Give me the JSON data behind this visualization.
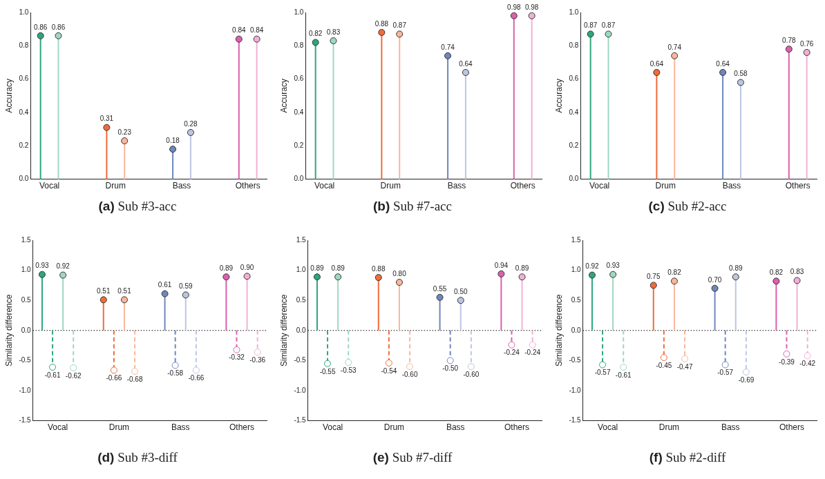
{
  "chart_data": [
    {
      "type": "lollipop",
      "title": "(a) Sub #3-acc",
      "ylabel": "Accuracy",
      "categories": [
        "Vocal",
        "Drum",
        "Bass",
        "Others"
      ],
      "ylim": [
        0,
        1
      ],
      "yticks": [
        {
          "value": 0,
          "label": "0.0"
        },
        0.2,
        0.4,
        0.6,
        0.8,
        {
          "value": 1,
          "label": "1.0"
        }
      ],
      "marker": "circle",
      "grid": false,
      "legend": false,
      "series": [
        {
          "colors": [
            "#2ca77a",
            "#f26b3a",
            "#6f86bd",
            "#de5fae"
          ],
          "values": [
            0.86,
            0.31,
            0.18,
            0.84
          ],
          "value_labels": [
            "0.86",
            "0.31",
            "0.18",
            "0.84"
          ],
          "line_style": "solid"
        },
        {
          "colors": [
            "#9fd8c0",
            "#fbb69a",
            "#bcc6e2",
            "#f2b0d6"
          ],
          "values": [
            0.86,
            0.23,
            0.28,
            0.84
          ],
          "value_labels": [
            "0.86",
            "0.23",
            "0.28",
            "0.84"
          ],
          "line_style": "solid"
        }
      ]
    },
    {
      "type": "lollipop",
      "title": "(b) Sub #7-acc",
      "ylabel": "Accuracy",
      "categories": [
        "Vocal",
        "Drum",
        "Bass",
        "Others"
      ],
      "ylim": [
        0,
        1
      ],
      "yticks": [
        {
          "value": 0,
          "label": "0.0"
        },
        0.2,
        0.4,
        0.6,
        0.8,
        {
          "value": 1,
          "label": "1.0"
        }
      ],
      "marker": "circle",
      "grid": false,
      "legend": false,
      "series": [
        {
          "colors": [
            "#2ca77a",
            "#f26b3a",
            "#6f86bd",
            "#de5fae"
          ],
          "values": [
            0.82,
            0.88,
            0.74,
            0.98
          ],
          "value_labels": [
            "0.82",
            "0.88",
            "0.74",
            "0.98"
          ],
          "line_style": "solid"
        },
        {
          "colors": [
            "#9fd8c0",
            "#fbb69a",
            "#bcc6e2",
            "#f2b0d6"
          ],
          "values": [
            0.83,
            0.87,
            0.64,
            0.98
          ],
          "value_labels": [
            "0.83",
            "0.87",
            "0.64",
            "0.98"
          ],
          "line_style": "solid"
        }
      ]
    },
    {
      "type": "lollipop",
      "title": "(c) Sub #2-acc",
      "ylabel": "Accuracy",
      "categories": [
        "Vocal",
        "Drum",
        "Bass",
        "Others"
      ],
      "ylim": [
        0,
        1
      ],
      "yticks": [
        {
          "value": 0,
          "label": "0.0"
        },
        0.2,
        0.4,
        0.6,
        0.8,
        {
          "value": 1,
          "label": "1.0"
        }
      ],
      "marker": "circle",
      "grid": false,
      "legend": false,
      "series": [
        {
          "colors": [
            "#2ca77a",
            "#f26b3a",
            "#6f86bd",
            "#de5fae"
          ],
          "values": [
            0.87,
            0.64,
            0.64,
            0.78
          ],
          "value_labels": [
            "0.87",
            "0.64",
            "0.64",
            "0.78"
          ],
          "line_style": "solid"
        },
        {
          "colors": [
            "#9fd8c0",
            "#fbb69a",
            "#bcc6e2",
            "#f2b0d6"
          ],
          "values": [
            0.87,
            0.74,
            0.58,
            0.76
          ],
          "value_labels": [
            "0.87",
            "0.74",
            "0.58",
            "0.76"
          ],
          "line_style": "solid"
        }
      ]
    },
    {
      "type": "lollipop",
      "title": "(d) Sub #3-diff",
      "ylabel": "Similarity difference",
      "categories": [
        "Vocal",
        "Drum",
        "Bass",
        "Others"
      ],
      "ylim": [
        -1.5,
        1.5
      ],
      "yticks": [
        -1.5,
        {
          "value": -1,
          "label": "-1.0"
        },
        -0.5,
        {
          "value": 0,
          "label": "0.0"
        },
        0.5,
        {
          "value": 1,
          "label": "1.0"
        },
        1.5
      ],
      "marker": "circle",
      "grid": false,
      "legend": false,
      "ref_lines": [
        {
          "axis": "y",
          "value": 0,
          "color": "#000000",
          "line_style": "dotted"
        }
      ],
      "series": [
        {
          "colors": [
            "#2ca77a",
            "#f26b3a",
            "#6f86bd",
            "#de5fae"
          ],
          "values": [
            0.93,
            0.51,
            0.61,
            0.89
          ],
          "value_labels": [
            "0.93",
            "0.51",
            "0.61",
            "0.89"
          ],
          "line_style": "solid"
        },
        {
          "colors": [
            "#2ca77a",
            "#f26b3a",
            "#6f86bd",
            "#de5fae"
          ],
          "values": [
            -0.61,
            -0.66,
            -0.58,
            -0.32
          ],
          "value_labels": [
            "-0.61",
            "-0.66",
            "-0.58",
            "-0.32"
          ],
          "line_style": "dashed"
        },
        {
          "colors": [
            "#9fd8c0",
            "#fbb69a",
            "#bcc6e2",
            "#f2b0d6"
          ],
          "values": [
            0.92,
            0.51,
            0.59,
            0.9
          ],
          "value_labels": [
            "0.92",
            "0.51",
            "0.59",
            "0.90"
          ],
          "line_style": "solid"
        },
        {
          "colors": [
            "#9fd8c0",
            "#fbb69a",
            "#bcc6e2",
            "#f2b0d6"
          ],
          "values": [
            -0.62,
            -0.68,
            -0.66,
            -0.36
          ],
          "value_labels": [
            "-0.62",
            "-0.68",
            "-0.66",
            "-0.36"
          ],
          "line_style": "dashed"
        }
      ]
    },
    {
      "type": "lollipop",
      "title": "(e) Sub #7-diff",
      "ylabel": "Similarity difference",
      "categories": [
        "Vocal",
        "Drum",
        "Bass",
        "Others"
      ],
      "ylim": [
        -1.5,
        1.5
      ],
      "yticks": [
        -1.5,
        {
          "value": -1,
          "label": "-1.0"
        },
        -0.5,
        {
          "value": 0,
          "label": "0.0"
        },
        0.5,
        {
          "value": 1,
          "label": "1.0"
        },
        1.5
      ],
      "marker": "circle",
      "grid": false,
      "legend": false,
      "ref_lines": [
        {
          "axis": "y",
          "value": 0,
          "color": "#000000",
          "line_style": "dotted"
        }
      ],
      "series": [
        {
          "colors": [
            "#2ca77a",
            "#f26b3a",
            "#6f86bd",
            "#de5fae"
          ],
          "values": [
            0.89,
            0.88,
            0.55,
            0.94
          ],
          "value_labels": [
            "0.89",
            "0.88",
            "0.55",
            "0.94"
          ],
          "line_style": "solid"
        },
        {
          "colors": [
            "#2ca77a",
            "#f26b3a",
            "#6f86bd",
            "#de5fae"
          ],
          "values": [
            -0.55,
            -0.54,
            -0.5,
            -0.24
          ],
          "value_labels": [
            "-0.55",
            "-0.54",
            "-0.50",
            "-0.24"
          ],
          "line_style": "dashed"
        },
        {
          "colors": [
            "#9fd8c0",
            "#fbb69a",
            "#bcc6e2",
            "#f2b0d6"
          ],
          "values": [
            0.89,
            0.8,
            0.5,
            0.89
          ],
          "value_labels": [
            "0.89",
            "0.80",
            "0.50",
            "0.89"
          ],
          "line_style": "solid"
        },
        {
          "colors": [
            "#9fd8c0",
            "#fbb69a",
            "#bcc6e2",
            "#f2b0d6"
          ],
          "values": [
            -0.53,
            -0.6,
            -0.6,
            -0.24
          ],
          "value_labels": [
            "-0.53",
            "-0.60",
            "-0.60",
            "-0.24"
          ],
          "line_style": "dashed"
        }
      ]
    },
    {
      "type": "lollipop",
      "title": "(f) Sub #2-diff",
      "ylabel": "Similarity difference",
      "categories": [
        "Vocal",
        "Drum",
        "Bass",
        "Others"
      ],
      "ylim": [
        -1.5,
        1.5
      ],
      "yticks": [
        -1.5,
        {
          "value": -1,
          "label": "-1.0"
        },
        -0.5,
        {
          "value": 0,
          "label": "0.0"
        },
        0.5,
        {
          "value": 1,
          "label": "1.0"
        },
        1.5
      ],
      "marker": "circle",
      "grid": false,
      "legend": false,
      "ref_lines": [
        {
          "axis": "y",
          "value": 0,
          "color": "#000000",
          "line_style": "dotted"
        }
      ],
      "series": [
        {
          "colors": [
            "#2ca77a",
            "#f26b3a",
            "#6f86bd",
            "#de5fae"
          ],
          "values": [
            0.92,
            0.75,
            0.7,
            0.82
          ],
          "value_labels": [
            "0.92",
            "0.75",
            "0.70",
            "0.82"
          ],
          "line_style": "solid"
        },
        {
          "colors": [
            "#2ca77a",
            "#f26b3a",
            "#6f86bd",
            "#de5fae"
          ],
          "values": [
            -0.57,
            -0.45,
            -0.57,
            -0.39
          ],
          "value_labels": [
            "-0.57",
            "-0.45",
            "-0.57",
            "-0.39"
          ],
          "line_style": "dashed"
        },
        {
          "colors": [
            "#9fd8c0",
            "#fbb69a",
            "#bcc6e2",
            "#f2b0d6"
          ],
          "values": [
            0.93,
            0.82,
            0.89,
            0.83
          ],
          "value_labels": [
            "0.93",
            "0.82",
            "0.89",
            "0.83"
          ],
          "line_style": "solid"
        },
        {
          "colors": [
            "#9fd8c0",
            "#fbb69a",
            "#bcc6e2",
            "#f2b0d6"
          ],
          "values": [
            -0.61,
            -0.47,
            -0.69,
            -0.42
          ],
          "value_labels": [
            "-0.61",
            "-0.47",
            "-0.69",
            "-0.42"
          ],
          "line_style": "dashed"
        }
      ]
    }
  ]
}
